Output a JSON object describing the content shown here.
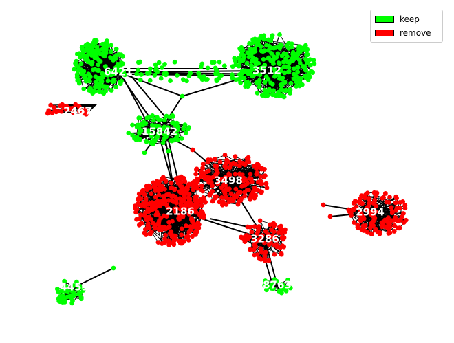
{
  "legend": {
    "items": [
      {
        "label": "keep",
        "color": "#00ff00"
      },
      {
        "label": "remove",
        "color": "#ff0000"
      }
    ]
  },
  "clusters": [
    {
      "label": "6421",
      "status": "keep"
    },
    {
      "label": "3512",
      "status": "keep"
    },
    {
      "label": "2467",
      "status": "remove"
    },
    {
      "label": "15842",
      "status": "keep"
    },
    {
      "label": "3498",
      "status": "remove"
    },
    {
      "label": "2186",
      "status": "remove"
    },
    {
      "label": "2994",
      "status": "remove"
    },
    {
      "label": "3286",
      "status": "remove"
    },
    {
      "label": "4459",
      "status": "keep"
    },
    {
      "label": "8763",
      "status": "keep"
    }
  ],
  "colors": {
    "keep": "#00ff00",
    "remove": "#ff0000",
    "edge": "#000000",
    "label": "#ffffff"
  }
}
